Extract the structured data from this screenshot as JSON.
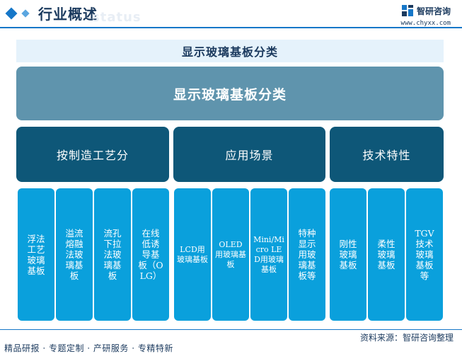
{
  "header": {
    "title": "行业概述",
    "watermark": "status",
    "brand_name": "智研咨询",
    "brand_url": "www.chyxx.com"
  },
  "banner": {
    "title": "显示玻璃基板分类"
  },
  "root": {
    "label": "显示玻璃基板分类"
  },
  "categories": [
    {
      "label": "按制造工艺分",
      "items": [
        {
          "label": "浮法工艺玻璃基板"
        },
        {
          "label": "溢流熔融法玻璃基板"
        },
        {
          "label": "流孔下拉法玻璃基板"
        },
        {
          "label": "在线低诱导基板（OLG）"
        }
      ]
    },
    {
      "label": "应用场景",
      "items": [
        {
          "label": "LCD用玻璃基板"
        },
        {
          "label": "OLED用玻璃基板"
        },
        {
          "label": "Mini/Micro LED用玻璃基板"
        },
        {
          "label": "特种显示用玻璃基板等"
        }
      ]
    },
    {
      "label": "技术特性",
      "items": [
        {
          "label": "刚性玻璃基板"
        },
        {
          "label": "柔性玻璃基板"
        },
        {
          "label": "TGV技术玻璃基板等"
        }
      ]
    }
  ],
  "colors": {
    "header_accent": "#1677c8",
    "banner_bg": "#e5f2fb",
    "root_bg": "#5f94ad",
    "category_bg": "#0e5778",
    "leaf_bg": "#0aa0dc"
  },
  "footer": {
    "source": "资料来源：智研咨询整理",
    "tagline": "精品研报 · 专题定制 · 产研服务 · 专精特新"
  }
}
